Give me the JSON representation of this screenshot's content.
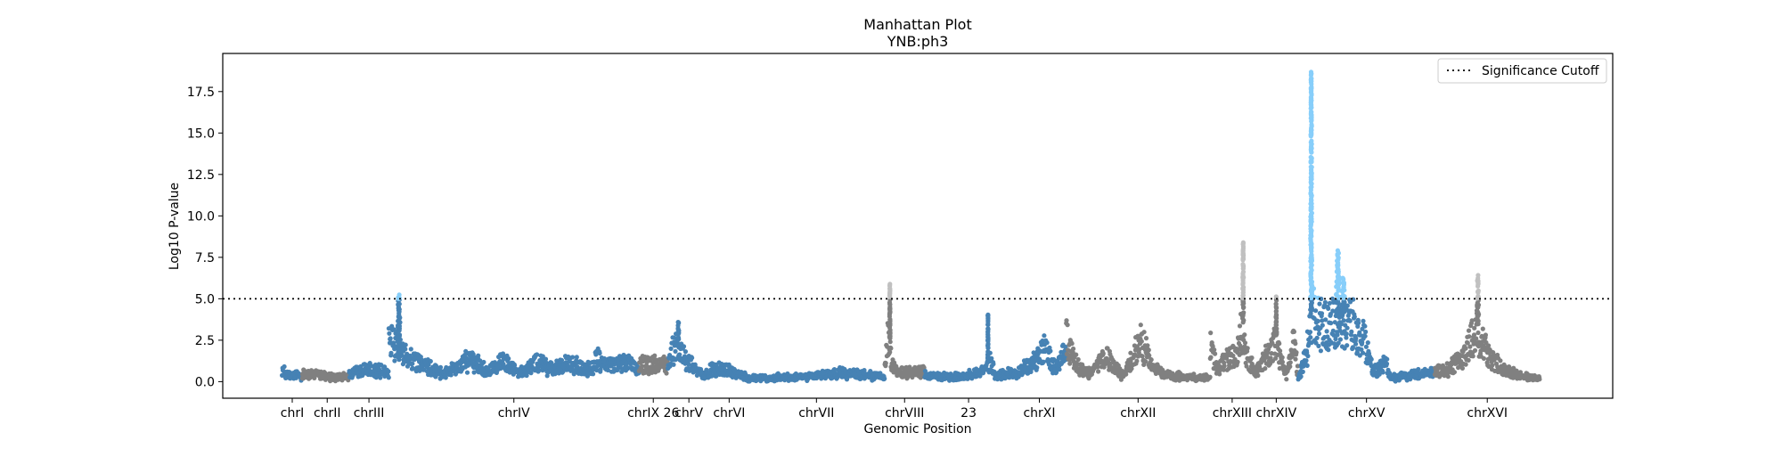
{
  "chart_data": {
    "type": "scatter",
    "title": "Manhattan Plot",
    "subtitle": "YNB:ph3",
    "xlabel": "Genomic Position",
    "ylabel": "Log10 P-value",
    "ylim": [
      -1.0,
      19.8
    ],
    "yticks": [
      "0.0",
      "2.5",
      "5.0",
      "7.5",
      "10.0",
      "12.5",
      "15.0",
      "17.5"
    ],
    "ytick_values": [
      0,
      2.5,
      5,
      7.5,
      10,
      12.5,
      15,
      17.5
    ],
    "grid": false,
    "legend_position": "top-right",
    "significance_cutoff": 5.0,
    "legend": [
      {
        "label": "Significance Cutoff",
        "style": "dotted"
      }
    ],
    "colors": {
      "blue": "#4682b4",
      "gray": "#808080",
      "blue_significant": "#87cefa",
      "gray_significant": "#c0c0c0",
      "cutoff": "#000000"
    },
    "chromosomes": [
      {
        "label": "chrI",
        "start": 0.0,
        "end": 24.0,
        "color": "blue",
        "base": [
          [
            0,
            0.9
          ],
          [
            24,
            0.5
          ]
        ]
      },
      {
        "label": "",
        "start": 24.0,
        "end": 27.5,
        "color": "gray",
        "base": [
          [
            0,
            0.6
          ],
          [
            100,
            0.6
          ]
        ]
      },
      {
        "label": "chrII",
        "start": 27.5,
        "end": 79.0,
        "color": "gray",
        "base": [
          [
            0,
            0.6
          ],
          [
            30,
            0.6
          ],
          [
            60,
            0.4
          ],
          [
            100,
            0.4
          ]
        ]
      },
      {
        "label": "chrIII",
        "start": 79.0,
        "end": 126.0,
        "color": "blue",
        "base": [
          [
            0,
            0.7
          ],
          [
            40,
            0.9
          ],
          [
            100,
            0.8
          ]
        ]
      },
      {
        "label": "chrIV",
        "start": 126.0,
        "end": 421.0,
        "color": "blue",
        "base": [
          [
            0,
            3.8
          ],
          [
            3,
            2.5
          ],
          [
            8,
            1.8
          ],
          [
            15,
            1.2
          ],
          [
            22,
            0.6
          ],
          [
            32,
            1.6
          ],
          [
            40,
            0.9
          ],
          [
            46,
            1.5
          ],
          [
            52,
            0.7
          ],
          [
            60,
            1.5
          ],
          [
            66,
            0.9
          ],
          [
            72,
            1.6
          ],
          [
            78,
            0.9
          ],
          [
            84,
            1.7
          ],
          [
            90,
            1.2
          ],
          [
            96,
            1.5
          ],
          [
            100,
            1.0
          ]
        ],
        "peaks": [
          {
            "x": 4,
            "y": 5.4,
            "w": 1.2
          }
        ]
      },
      {
        "label": "chrIX 26",
        "start": 421.0,
        "end": 455.0,
        "color": "gray",
        "base": [
          [
            0,
            1.3
          ],
          [
            100,
            1.3
          ]
        ]
      },
      {
        "label": "chrV",
        "start": 455.0,
        "end": 505.0,
        "color": "blue",
        "base": [
          [
            0,
            1.5
          ],
          [
            20,
            2.8
          ],
          [
            50,
            1.5
          ],
          [
            80,
            0.6
          ],
          [
            100,
            0.5
          ]
        ],
        "peaks": [
          {
            "x": 25,
            "y": 3.8,
            "w": 4
          }
        ]
      },
      {
        "label": "chrVI",
        "start": 505.0,
        "end": 550.0,
        "color": "blue",
        "base": [
          [
            0,
            1.0
          ],
          [
            40,
            1.0
          ],
          [
            100,
            0.3
          ]
        ]
      },
      {
        "label": "chrVII",
        "start": 550.0,
        "end": 711.0,
        "color": "blue",
        "base": [
          [
            0,
            0.3
          ],
          [
            40,
            0.4
          ],
          [
            70,
            0.7
          ],
          [
            100,
            0.4
          ]
        ]
      },
      {
        "label": "chrVIII",
        "start": 711.0,
        "end": 758.0,
        "color": "gray",
        "base": [
          [
            0,
            1.5
          ],
          [
            10,
            3.5
          ],
          [
            18,
            1.2
          ],
          [
            30,
            0.7
          ],
          [
            100,
            0.8
          ]
        ],
        "peaks": [
          {
            "x": 13,
            "y": 6.1,
            "w": 2
          }
        ]
      },
      {
        "label": "23",
        "start": 758.0,
        "end": 862.0,
        "color": "blue",
        "base": [
          [
            0,
            0.5
          ],
          [
            40,
            0.4
          ],
          [
            68,
            0.8
          ],
          [
            75,
            1.6
          ],
          [
            80,
            0.5
          ],
          [
            100,
            0.7
          ]
        ],
        "peaks": [
          {
            "x": 72,
            "y": 4.3,
            "w": 0.5
          }
        ]
      },
      {
        "label": "chrXI",
        "start": 862.0,
        "end": 925.0,
        "color": "blue",
        "base": [
          [
            0,
            0.6
          ],
          [
            40,
            1.5
          ],
          [
            60,
            2.5
          ],
          [
            80,
            1.0
          ],
          [
            100,
            2.3
          ]
        ]
      },
      {
        "label": "chrXII",
        "start": 925.0,
        "end": 1095.0,
        "color": "gray",
        "base": [
          [
            0,
            3.5
          ],
          [
            6,
            1.5
          ],
          [
            15,
            0.6
          ],
          [
            28,
            1.8
          ],
          [
            40,
            0.4
          ],
          [
            52,
            3.0
          ],
          [
            60,
            1.2
          ],
          [
            70,
            0.5
          ],
          [
            85,
            0.4
          ],
          [
            100,
            0.3
          ]
        ]
      },
      {
        "label": "chrXIII",
        "start": 1095.0,
        "end": 1147.0,
        "color": "gray",
        "base": [
          [
            0,
            2.5
          ],
          [
            18,
            1.0
          ],
          [
            30,
            1.5
          ],
          [
            60,
            2.0
          ],
          [
            74,
            4.2
          ],
          [
            82,
            2.0
          ],
          [
            100,
            1.0
          ]
        ],
        "peaks": [
          {
            "x": 75,
            "y": 8.5,
            "w": 2.5
          }
        ]
      },
      {
        "label": "chrXIV",
        "start": 1147.0,
        "end": 1199.0,
        "color": "gray",
        "base": [
          [
            0,
            0.6
          ],
          [
            20,
            1.5
          ],
          [
            50,
            3.0
          ],
          [
            60,
            1.5
          ],
          [
            75,
            0.5
          ],
          [
            90,
            3.5
          ],
          [
            100,
            0.3
          ]
        ],
        "peaks": [
          {
            "x": 50,
            "y": 5.2,
            "w": 2
          }
        ]
      },
      {
        "label": "chrXV",
        "start": 1199.0,
        "end": 1360.0,
        "color": "blue",
        "base": [
          [
            0,
            0.3
          ],
          [
            8,
            3.0
          ],
          [
            10,
            5.0
          ],
          [
            14,
            4.5
          ],
          [
            24,
            4.2
          ],
          [
            32,
            4.0
          ],
          [
            38,
            4.5
          ],
          [
            48,
            3.0
          ],
          [
            55,
            0.8
          ],
          [
            64,
            1.4
          ],
          [
            68,
            0.3
          ],
          [
            100,
            0.8
          ]
        ],
        "peaks": [
          {
            "x": 9.5,
            "y": 18.8,
            "w": 1.2
          },
          {
            "x": 29,
            "y": 8.0,
            "w": 3
          },
          {
            "x": 33,
            "y": 6.5,
            "w": 3
          }
        ]
      },
      {
        "label": "chrXVI",
        "start": 1360.0,
        "end": 1484.0,
        "color": "gray",
        "base": [
          [
            0,
            0.8
          ],
          [
            14,
            1.0
          ],
          [
            28,
            2.0
          ],
          [
            40,
            3.8
          ],
          [
            52,
            1.8
          ],
          [
            70,
            0.8
          ],
          [
            85,
            0.4
          ],
          [
            100,
            0.3
          ]
        ],
        "peaks": [
          {
            "x": 41,
            "y": 6.5,
            "w": 2
          }
        ]
      }
    ]
  }
}
